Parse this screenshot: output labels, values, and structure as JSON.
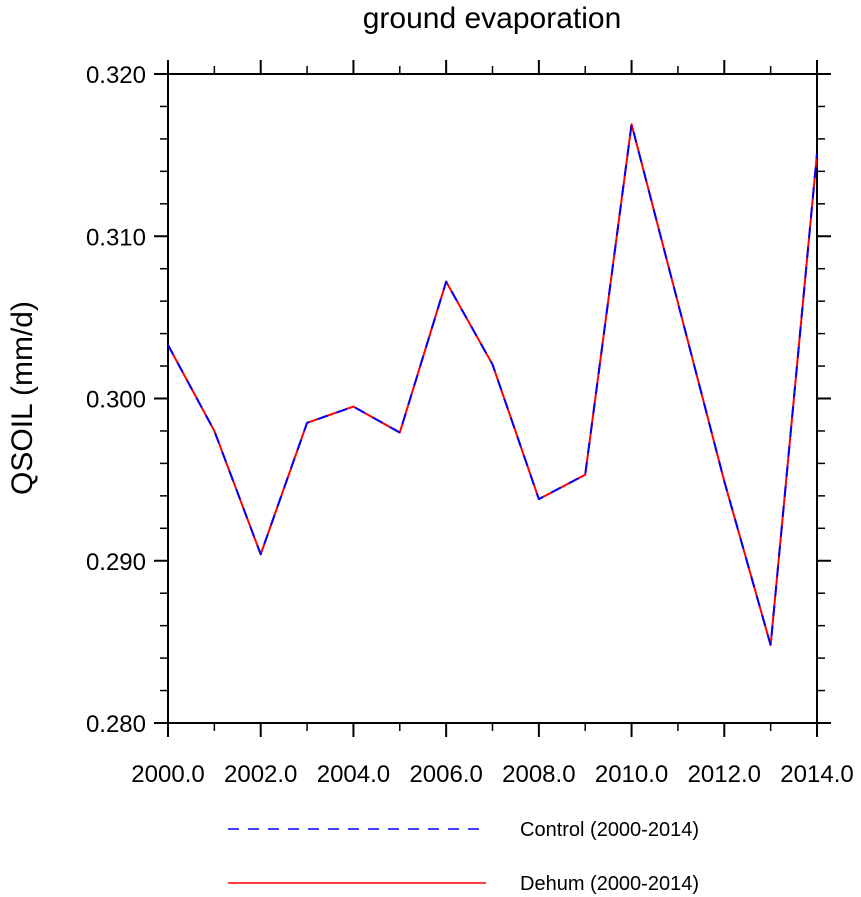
{
  "chart_data": {
    "type": "line",
    "title": "ground evaporation",
    "xlabel": "",
    "ylabel": "QSOIL  (mm/d)",
    "xlim": [
      2000,
      2014
    ],
    "ylim": [
      0.28,
      0.32
    ],
    "x_ticks": [
      2000,
      2002,
      2004,
      2006,
      2008,
      2010,
      2012,
      2014
    ],
    "x_tick_labels": [
      "2000.0",
      "2002.0",
      "2004.0",
      "2006.0",
      "2008.0",
      "2010.0",
      "2012.0",
      "2014.0"
    ],
    "y_ticks": [
      0.28,
      0.29,
      0.3,
      0.31,
      0.32
    ],
    "y_tick_labels": [
      "0.280",
      "0.290",
      "0.300",
      "0.310",
      "0.320"
    ],
    "grid": false,
    "legend_position": "bottom",
    "x": [
      2000,
      2001,
      2002,
      2003,
      2004,
      2005,
      2006,
      2007,
      2008,
      2009,
      2010,
      2011,
      2012,
      2013,
      2014
    ],
    "series": [
      {
        "name": "Control (2000-2014)",
        "color": "#0000ff",
        "style": "dashed",
        "values": [
          0.3033,
          0.298,
          0.2904,
          0.2985,
          0.2995,
          0.2979,
          0.3072,
          0.3021,
          0.2938,
          0.2953,
          0.3169,
          0.3059,
          0.2949,
          0.2848,
          0.3151
        ]
      },
      {
        "name": "Dehum (2000-2014)",
        "color": "#ff0000",
        "style": "solid",
        "values": [
          0.3033,
          0.298,
          0.2904,
          0.2985,
          0.2995,
          0.2979,
          0.3072,
          0.3021,
          0.2938,
          0.2953,
          0.3169,
          0.3059,
          0.2949,
          0.2848,
          0.3151
        ]
      }
    ]
  }
}
